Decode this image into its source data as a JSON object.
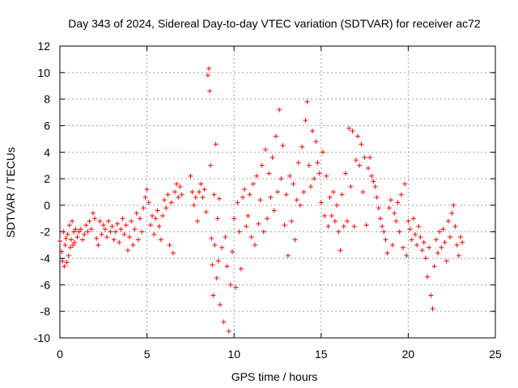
{
  "chart_data": {
    "type": "scatter",
    "title": "Day 343 of 2024, Sidereal Day-to-day VTEC variation (SDTVAR) for receiver ac72",
    "xlabel": "GPS time / hours",
    "ylabel": "SDTVAR / TECUs",
    "xlim": [
      0,
      25
    ],
    "ylim": [
      -10,
      12
    ],
    "xticks": [
      0,
      5,
      10,
      15,
      20,
      25
    ],
    "yticks": [
      -10,
      -8,
      -6,
      -4,
      -2,
      0,
      2,
      4,
      6,
      8,
      10,
      12
    ],
    "grid": true,
    "marker": "+",
    "color": "#ff0000",
    "series": [
      {
        "name": "SDTVAR",
        "points": [
          [
            0.0,
            -2.7
          ],
          [
            0.1,
            -3.5
          ],
          [
            0.15,
            -4.2
          ],
          [
            0.2,
            -2.0
          ],
          [
            0.25,
            -4.6
          ],
          [
            0.3,
            -3.0
          ],
          [
            0.35,
            -2.5
          ],
          [
            0.4,
            -4.3
          ],
          [
            0.45,
            -2.2
          ],
          [
            0.5,
            -3.8
          ],
          [
            0.55,
            -1.5
          ],
          [
            0.6,
            -3.2
          ],
          [
            0.65,
            -2.6
          ],
          [
            0.7,
            -1.2
          ],
          [
            0.75,
            -3.0
          ],
          [
            0.8,
            -2.0
          ],
          [
            0.85,
            -2.8
          ],
          [
            0.9,
            -1.8
          ],
          [
            1.0,
            -2.4
          ],
          [
            1.1,
            -2.0
          ],
          [
            1.2,
            -1.8
          ],
          [
            1.3,
            -2.6
          ],
          [
            1.4,
            -2.2
          ],
          [
            1.5,
            -1.5
          ],
          [
            1.6,
            -2.0
          ],
          [
            1.7,
            -1.2
          ],
          [
            1.8,
            -1.8
          ],
          [
            1.9,
            -0.6
          ],
          [
            2.0,
            -1.0
          ],
          [
            2.1,
            -2.5
          ],
          [
            2.2,
            -3.0
          ],
          [
            2.3,
            -1.2
          ],
          [
            2.4,
            -2.2
          ],
          [
            2.5,
            -1.5
          ],
          [
            2.6,
            -1.8
          ],
          [
            2.7,
            -2.4
          ],
          [
            2.8,
            -1.2
          ],
          [
            2.9,
            -2.0
          ],
          [
            3.0,
            -1.6
          ],
          [
            3.1,
            -2.6
          ],
          [
            3.2,
            -2.0
          ],
          [
            3.3,
            -1.4
          ],
          [
            3.4,
            -2.8
          ],
          [
            3.5,
            -1.8
          ],
          [
            3.6,
            -1.0
          ],
          [
            3.7,
            -2.2
          ],
          [
            3.8,
            -1.5
          ],
          [
            3.9,
            -3.4
          ],
          [
            4.0,
            -2.4
          ],
          [
            4.1,
            -1.2
          ],
          [
            4.2,
            -3.0
          ],
          [
            4.3,
            -1.8
          ],
          [
            4.4,
            -0.6
          ],
          [
            4.5,
            -2.6
          ],
          [
            4.6,
            -1.0
          ],
          [
            4.7,
            -2.0
          ],
          [
            4.8,
            -0.2
          ],
          [
            4.9,
            0.6
          ],
          [
            5.0,
            1.2
          ],
          [
            5.1,
            0.2
          ],
          [
            5.2,
            -1.5
          ],
          [
            5.3,
            -0.8
          ],
          [
            5.4,
            -2.2
          ],
          [
            5.5,
            -1.0
          ],
          [
            5.6,
            -0.4
          ],
          [
            5.7,
            -1.6
          ],
          [
            5.8,
            -2.6
          ],
          [
            5.9,
            -0.8
          ],
          [
            6.0,
            0.4
          ],
          [
            6.1,
            -0.2
          ],
          [
            6.2,
            0.8
          ],
          [
            6.3,
            -3.0
          ],
          [
            6.4,
            0.2
          ],
          [
            6.5,
            -3.6
          ],
          [
            6.6,
            1.0
          ],
          [
            6.7,
            1.6
          ],
          [
            6.8,
            0.6
          ],
          [
            6.9,
            1.4
          ],
          [
            7.0,
            0.8
          ],
          [
            7.5,
            2.2
          ],
          [
            7.6,
            1.0
          ],
          [
            7.7,
            0.0
          ],
          [
            7.8,
            0.6
          ],
          [
            7.9,
            -1.2
          ],
          [
            8.0,
            1.0
          ],
          [
            8.1,
            1.6
          ],
          [
            8.2,
            0.6
          ],
          [
            8.3,
            1.2
          ],
          [
            8.4,
            -0.5
          ],
          [
            8.5,
            9.8
          ],
          [
            8.55,
            10.3
          ],
          [
            8.6,
            8.6
          ],
          [
            8.65,
            3.0
          ],
          [
            8.7,
            -2.5
          ],
          [
            8.75,
            -4.5
          ],
          [
            8.8,
            -6.8
          ],
          [
            8.85,
            0.8
          ],
          [
            8.9,
            -3.0
          ],
          [
            8.95,
            4.6
          ],
          [
            9.0,
            -5.5
          ],
          [
            9.05,
            -1.0
          ],
          [
            9.1,
            -4.2
          ],
          [
            9.15,
            0.5
          ],
          [
            9.2,
            -7.5
          ],
          [
            9.3,
            -3.2
          ],
          [
            9.4,
            -8.8
          ],
          [
            9.5,
            -2.4
          ],
          [
            9.6,
            -4.6
          ],
          [
            9.7,
            -9.5
          ],
          [
            9.8,
            -6.0
          ],
          [
            9.9,
            -3.5
          ],
          [
            10.0,
            -1.0
          ],
          [
            10.1,
            -6.2
          ],
          [
            10.2,
            0.2
          ],
          [
            10.3,
            -2.0
          ],
          [
            10.4,
            -4.8
          ],
          [
            10.5,
            0.6
          ],
          [
            10.6,
            1.2
          ],
          [
            10.7,
            -1.6
          ],
          [
            10.8,
            -0.8
          ],
          [
            10.9,
            0.8
          ],
          [
            11.0,
            -2.4
          ],
          [
            11.1,
            1.6
          ],
          [
            11.2,
            -3.0
          ],
          [
            11.3,
            2.2
          ],
          [
            11.4,
            -1.4
          ],
          [
            11.5,
            0.4
          ],
          [
            11.6,
            3.0
          ],
          [
            11.7,
            -2.0
          ],
          [
            11.8,
            4.2
          ],
          [
            11.9,
            -1.0
          ],
          [
            12.0,
            2.4
          ],
          [
            12.1,
            0.6
          ],
          [
            12.2,
            3.6
          ],
          [
            12.3,
            -0.4
          ],
          [
            12.4,
            5.2
          ],
          [
            12.5,
            1.0
          ],
          [
            12.6,
            7.2
          ],
          [
            12.7,
            2.0
          ],
          [
            12.8,
            4.5
          ],
          [
            12.9,
            -1.5
          ],
          [
            13.0,
            0.8
          ],
          [
            13.1,
            -3.8
          ],
          [
            13.2,
            2.2
          ],
          [
            13.3,
            -1.2
          ],
          [
            13.4,
            1.6
          ],
          [
            13.5,
            -2.6
          ],
          [
            13.6,
            0.4
          ],
          [
            13.7,
            3.2
          ],
          [
            13.8,
            0.0
          ],
          [
            13.9,
            4.4
          ],
          [
            14.0,
            1.0
          ],
          [
            14.1,
            6.4
          ],
          [
            14.2,
            7.8
          ],
          [
            14.3,
            3.0
          ],
          [
            14.4,
            1.4
          ],
          [
            14.5,
            5.6
          ],
          [
            14.6,
            2.0
          ],
          [
            14.7,
            4.8
          ],
          [
            14.8,
            3.2
          ],
          [
            14.9,
            2.4
          ],
          [
            15.0,
            0.2
          ],
          [
            15.1,
            4.0
          ],
          [
            15.2,
            -0.8
          ],
          [
            15.3,
            2.2
          ],
          [
            15.4,
            -1.6
          ],
          [
            15.5,
            0.6
          ],
          [
            15.6,
            -0.8
          ],
          [
            15.7,
            1.0
          ],
          [
            15.8,
            -1.2
          ],
          [
            15.9,
            0.0
          ],
          [
            16.0,
            -2.0
          ],
          [
            16.1,
            -3.4
          ],
          [
            16.2,
            0.8
          ],
          [
            16.3,
            -1.6
          ],
          [
            16.4,
            2.4
          ],
          [
            16.5,
            -1.2
          ],
          [
            16.6,
            5.8
          ],
          [
            16.7,
            1.4
          ],
          [
            16.8,
            5.6
          ],
          [
            16.9,
            -1.6
          ],
          [
            17.0,
            3.4
          ],
          [
            17.1,
            5.2
          ],
          [
            17.2,
            3.0
          ],
          [
            17.3,
            4.6
          ],
          [
            17.4,
            1.0
          ],
          [
            17.5,
            3.6
          ],
          [
            17.6,
            -1.5
          ],
          [
            17.7,
            2.8
          ],
          [
            17.8,
            3.6
          ],
          [
            17.9,
            2.2
          ],
          [
            18.0,
            1.8
          ],
          [
            18.1,
            1.4
          ],
          [
            18.2,
            0.6
          ],
          [
            18.3,
            -0.2
          ],
          [
            18.4,
            -1.0
          ],
          [
            18.5,
            -1.6
          ],
          [
            18.6,
            -2.0
          ],
          [
            18.7,
            -2.6
          ],
          [
            18.8,
            -3.6
          ],
          [
            18.9,
            -0.2
          ],
          [
            19.0,
            0.4
          ],
          [
            19.1,
            -3.0
          ],
          [
            19.2,
            -0.6
          ],
          [
            19.3,
            -1.2
          ],
          [
            19.4,
            0.2
          ],
          [
            19.5,
            -2.0
          ],
          [
            19.6,
            0.8
          ],
          [
            19.7,
            -3.2
          ],
          [
            19.8,
            1.6
          ],
          [
            19.9,
            -3.8
          ],
          [
            20.0,
            -1.2
          ],
          [
            20.1,
            -1.8
          ],
          [
            20.2,
            -2.6
          ],
          [
            20.3,
            -1.0
          ],
          [
            20.4,
            -2.2
          ],
          [
            20.5,
            -3.0
          ],
          [
            20.6,
            -1.6
          ],
          [
            20.7,
            -2.4
          ],
          [
            20.8,
            -3.4
          ],
          [
            20.9,
            -2.8
          ],
          [
            21.0,
            -4.0
          ],
          [
            21.1,
            -5.4
          ],
          [
            21.2,
            -3.2
          ],
          [
            21.3,
            -6.8
          ],
          [
            21.4,
            -7.8
          ],
          [
            21.5,
            -4.6
          ],
          [
            21.6,
            -2.6
          ],
          [
            21.7,
            -3.6
          ],
          [
            21.8,
            -2.0
          ],
          [
            21.9,
            -3.2
          ],
          [
            22.0,
            -1.8
          ],
          [
            22.1,
            -2.8
          ],
          [
            22.2,
            -4.2
          ],
          [
            22.3,
            -1.2
          ],
          [
            22.4,
            -2.4
          ],
          [
            22.5,
            -0.6
          ],
          [
            22.6,
            0.0
          ],
          [
            22.7,
            -1.6
          ],
          [
            22.8,
            -3.0
          ],
          [
            22.9,
            -3.8
          ],
          [
            23.0,
            -2.4
          ],
          [
            23.1,
            -2.8
          ]
        ]
      }
    ]
  }
}
